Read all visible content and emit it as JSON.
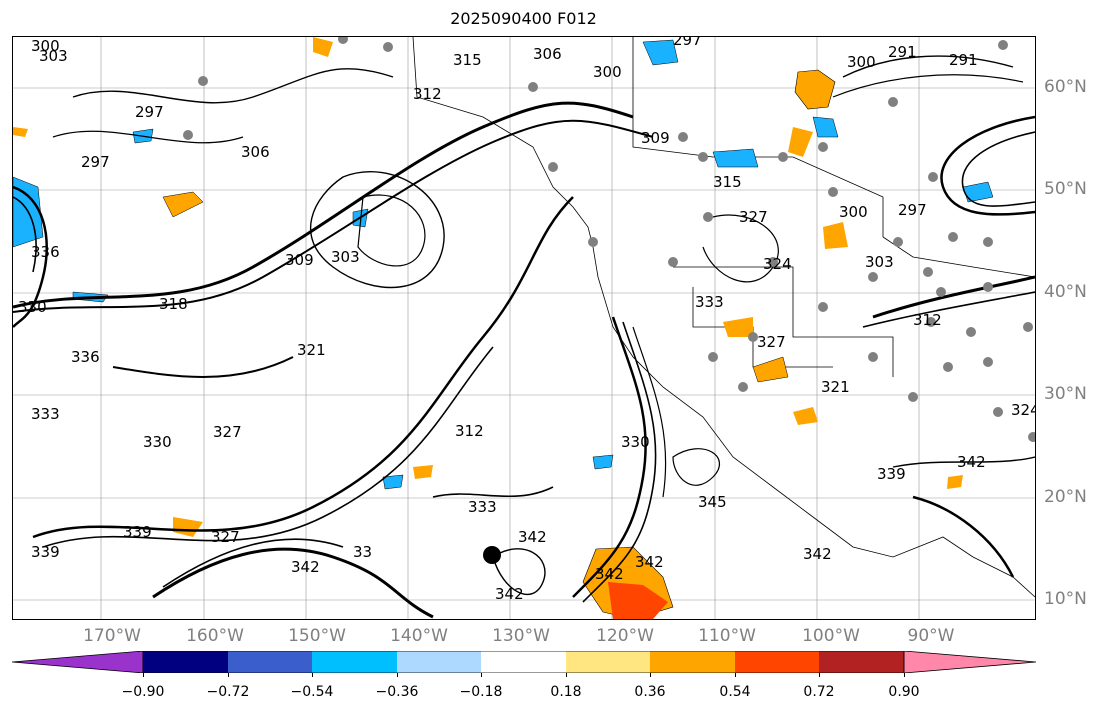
{
  "title": "2025090400 F012",
  "map": {
    "latitude_labels": [
      "60°N",
      "50°N",
      "40°N",
      "30°N",
      "20°N",
      "10°N"
    ],
    "longitude_labels": [
      "170°W",
      "160°W",
      "150°W",
      "140°W",
      "130°W",
      "120°W",
      "110°W",
      "100°W",
      "90°W"
    ],
    "contour_labels": [
      "300",
      "303",
      "297",
      "315",
      "306",
      "300",
      "297",
      "300",
      "291",
      "291",
      "312",
      "309",
      "315",
      "300",
      "303",
      "297",
      "306",
      "297",
      "327",
      "324",
      "309",
      "303",
      "336",
      "318",
      "330",
      "312",
      "321",
      "333",
      "336",
      "327",
      "321",
      "333",
      "327",
      "324",
      "312",
      "339",
      "345",
      "342",
      "342",
      "342",
      "342",
      "339",
      "342",
      "342",
      "330",
      "330",
      "327",
      "339",
      "333",
      "342",
      "33"
    ],
    "fill_colors": {
      "orange": "#ffa500",
      "blue": "#1ab2ff",
      "red": "#ff4500",
      "yellow": "#ffe680"
    }
  },
  "colorbar": {
    "tick_labels": [
      "−0.90",
      "−0.72",
      "−0.54",
      "−0.36",
      "−0.18",
      "0.18",
      "0.36",
      "0.54",
      "0.72",
      "0.90"
    ],
    "colors": [
      "#9933cc",
      "#000080",
      "#3a5fcd",
      "#00bfff",
      "#add8ff",
      "#ffffff",
      "#ffe680",
      "#ffa500",
      "#ff4500",
      "#b22222",
      "#ff88aa"
    ]
  }
}
